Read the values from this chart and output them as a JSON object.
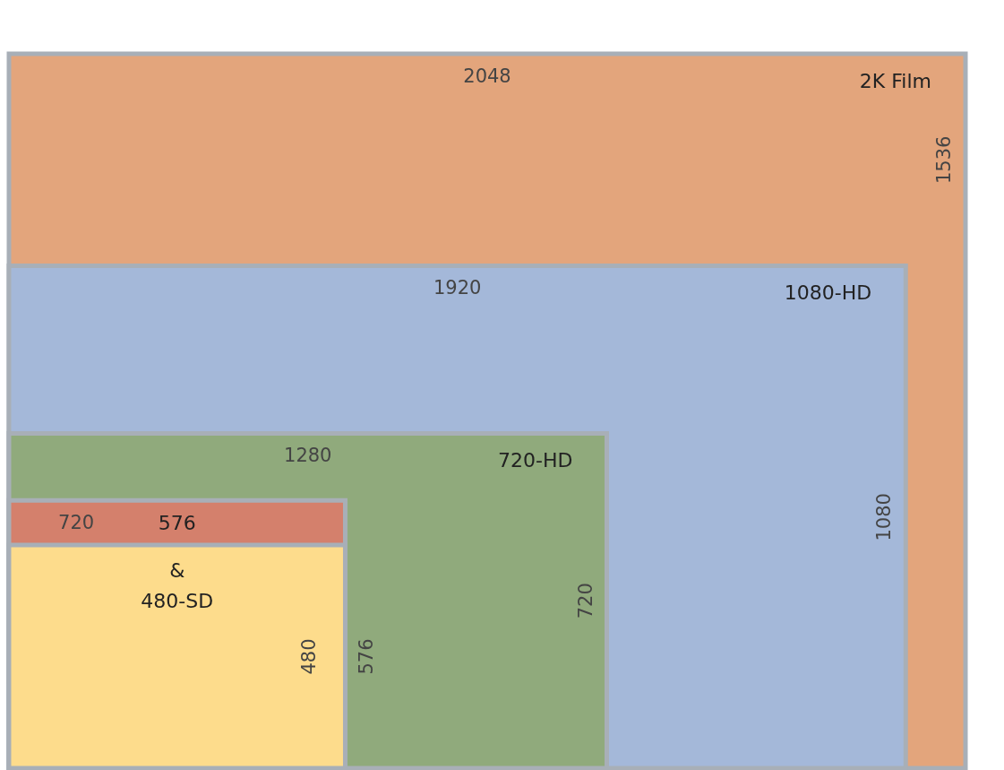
{
  "chart_data": {
    "type": "other",
    "categories": [
      "2K Film",
      "1080-HD",
      "720-HD",
      "576",
      "&\n480-SD"
    ],
    "series": [
      {
        "colors": [
          "#e3a57c",
          "#a4b8d9",
          "#90aa7c",
          "#d4806c",
          "#fddc8c"
        ],
        "values": [
          2048,
          1920,
          1280,
          720,
          null
        ],
        "value_labels": [
          "2048",
          "1920",
          "1280",
          "720",
          null
        ]
      },
      {
        "values": [
          1536,
          1080,
          720,
          576,
          480
        ],
        "value_labels": [
          "1536",
          "1080",
          "720",
          "576",
          "480"
        ]
      }
    ]
  }
}
